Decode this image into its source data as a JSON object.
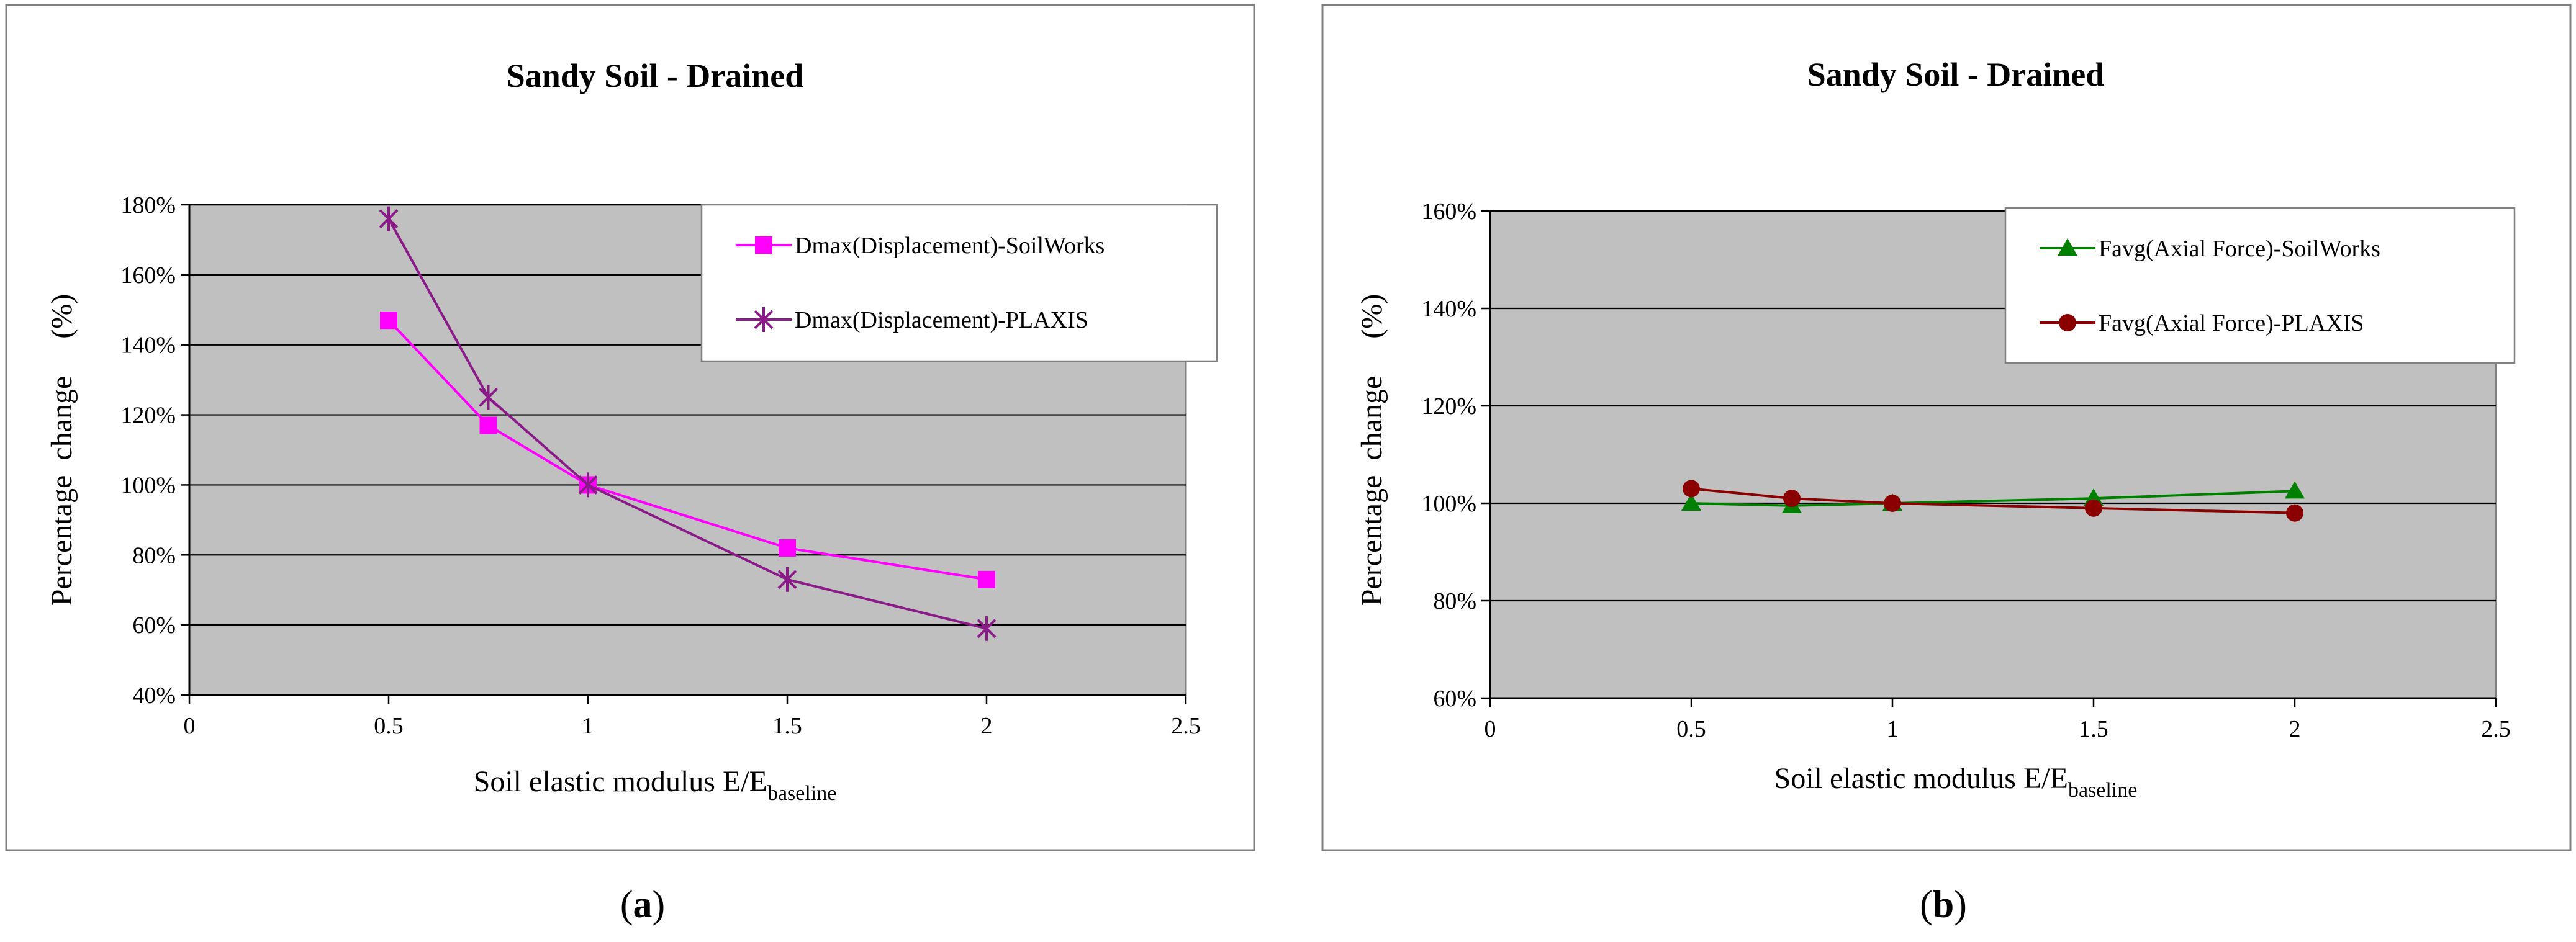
{
  "chart_data": [
    {
      "type": "line",
      "panel_label": "(a)",
      "panel_letter": "a",
      "title": "Sandy Soil - Drained",
      "xlabel_main": "Soil elastic modulus  E/E",
      "xlabel_sub": "baseline",
      "ylabel": "Percentage  change     (%)",
      "xlim": [
        0,
        2.5
      ],
      "ylim": [
        40,
        180
      ],
      "x_ticks": [
        0,
        0.5,
        1,
        1.5,
        2,
        2.5
      ],
      "x_tick_labels": [
        "0",
        "0.5",
        "1",
        "1.5",
        "2",
        "2.5"
      ],
      "y_ticks": [
        40,
        60,
        80,
        100,
        120,
        140,
        160,
        180
      ],
      "y_tick_labels": [
        "40%",
        "60%",
        "80%",
        "100%",
        "120%",
        "140%",
        "160%",
        "180%"
      ],
      "grid": true,
      "legend_position": "top-right",
      "series": [
        {
          "name": "Dmax(Displacement)-SoilWorks",
          "marker": "square",
          "color": "#FF00FF",
          "x": [
            0.5,
            0.75,
            1,
            1.5,
            2
          ],
          "y": [
            147,
            117,
            100,
            82,
            73
          ]
        },
        {
          "name": "Dmax(Displacement)-PLAXIS",
          "marker": "star",
          "color": "#8B1A89",
          "x": [
            0.5,
            0.75,
            1,
            1.5,
            2
          ],
          "y": [
            176,
            125,
            100,
            73,
            59
          ]
        }
      ]
    },
    {
      "type": "line",
      "panel_label": "(b)",
      "panel_letter": "b",
      "title": "Sandy Soil - Drained",
      "xlabel_main": "Soil elastic modulus  E/E",
      "xlabel_sub": "baseline",
      "ylabel": "Percentage  change     (%)",
      "xlim": [
        0,
        2.5
      ],
      "ylim": [
        60,
        160
      ],
      "x_ticks": [
        0,
        0.5,
        1,
        1.5,
        2,
        2.5
      ],
      "x_tick_labels": [
        "0",
        "0.5",
        "1",
        "1.5",
        "2",
        "2.5"
      ],
      "y_ticks": [
        60,
        80,
        100,
        120,
        140,
        160
      ],
      "y_tick_labels": [
        "60%",
        "80%",
        "100%",
        "120%",
        "140%",
        "160%"
      ],
      "grid": true,
      "legend_position": "top-right",
      "series": [
        {
          "name": "Favg(Axial Force)-SoilWorks",
          "marker": "triangle",
          "color": "#008000",
          "x": [
            0.5,
            0.75,
            1,
            1.5,
            2
          ],
          "y": [
            100,
            99.5,
            100,
            101,
            102.5
          ]
        },
        {
          "name": "Favg(Axial Force)-PLAXIS",
          "marker": "circle",
          "color": "#8B0000",
          "x": [
            0.5,
            0.75,
            1,
            1.5,
            2
          ],
          "y": [
            103,
            101,
            100,
            99,
            98
          ]
        }
      ]
    }
  ]
}
